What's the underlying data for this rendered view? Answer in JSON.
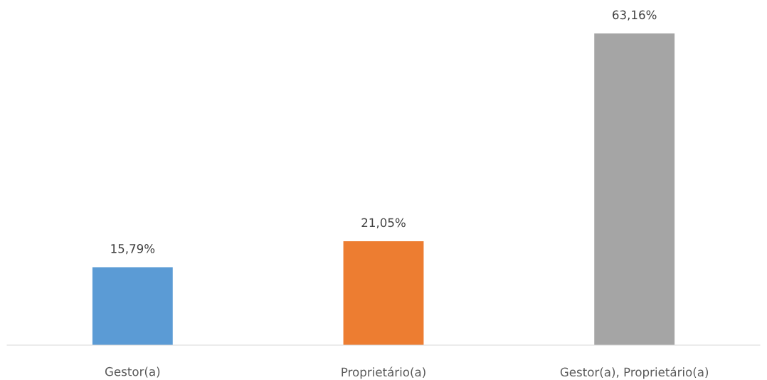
{
  "chart_data": {
    "type": "bar",
    "categories": [
      "Gestor(a)",
      "Proprietário(a)",
      "Gestor(a), Proprietário(a)"
    ],
    "values": [
      15.79,
      21.05,
      63.16
    ],
    "colors": [
      "#5b9bd5",
      "#ed7d31",
      "#a5a5a5"
    ],
    "value_labels": [
      "15,79%",
      "21,05%",
      "63,16%"
    ],
    "grid": false,
    "legend": false
  }
}
